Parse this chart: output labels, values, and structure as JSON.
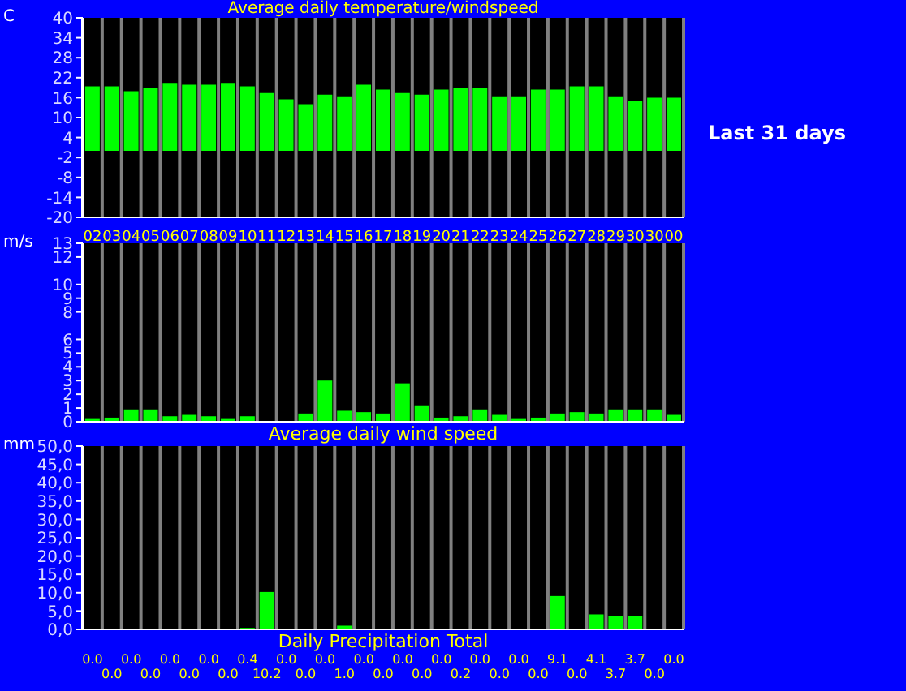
{
  "chart_data": [
    {
      "type": "bar",
      "title": "Average daily temperature/windspeed",
      "ylabel": "C",
      "annotations": [
        "Last 31 days"
      ],
      "categories": [
        "02",
        "03",
        "04",
        "05",
        "06",
        "07",
        "08",
        "09",
        "10",
        "11",
        "12",
        "13",
        "14",
        "15",
        "16",
        "17",
        "18",
        "19",
        "20",
        "21",
        "22",
        "23",
        "24",
        "25",
        "26",
        "27",
        "28",
        "29",
        "30",
        "30",
        "00"
      ],
      "values": [
        19.4,
        19.4,
        17.9,
        18.9,
        20.4,
        19.9,
        19.9,
        20.4,
        19.4,
        17.4,
        15.5,
        14.0,
        16.9,
        16.4,
        19.9,
        18.4,
        17.4,
        16.9,
        18.4,
        18.9,
        18.9,
        16.4,
        16.4,
        18.4,
        18.4,
        19.4,
        19.4,
        16.4,
        15.0,
        16.0,
        16.0
      ],
      "color": "#00ff00",
      "ylim": [
        -20,
        40
      ],
      "yticks": [
        -20,
        -14,
        -8,
        -2,
        4,
        10,
        16,
        22,
        28,
        34,
        40
      ],
      "grid": "x"
    },
    {
      "type": "bar",
      "xlabel": "Average daily wind speed",
      "ylabel": "m/s",
      "categories": [
        "02",
        "03",
        "04",
        "05",
        "06",
        "07",
        "08",
        "09",
        "10",
        "11",
        "12",
        "13",
        "14",
        "15",
        "16",
        "17",
        "18",
        "19",
        "20",
        "21",
        "22",
        "23",
        "24",
        "25",
        "26",
        "27",
        "28",
        "29",
        "30",
        "30",
        "00"
      ],
      "values": [
        0.2,
        0.3,
        0.9,
        0.9,
        0.4,
        0.5,
        0.4,
        0.2,
        0.4,
        0,
        0,
        0.6,
        3.0,
        0.8,
        0.7,
        0.6,
        2.8,
        1.2,
        0.3,
        0.4,
        0.9,
        0.5,
        0.2,
        0.3,
        0.6,
        0.7,
        0.6,
        0.9,
        0.9,
        0.9,
        0.5
      ],
      "color": "#00ff00",
      "ylim": [
        0,
        13
      ],
      "yticks": [
        0,
        1,
        2,
        3,
        4,
        5,
        6,
        8,
        9,
        10,
        12,
        13
      ],
      "grid": "x",
      "tick_labels": "y"
    },
    {
      "type": "bar",
      "xlabel": "Daily Precipitation Total",
      "ylabel": "mm",
      "categories": [
        "02",
        "03",
        "04",
        "05",
        "06",
        "07",
        "08",
        "09",
        "10",
        "11",
        "12",
        "13",
        "14",
        "15",
        "16",
        "17",
        "18",
        "19",
        "20",
        "21",
        "22",
        "23",
        "24",
        "25",
        "26",
        "27",
        "28",
        "29",
        "30",
        "30",
        "00"
      ],
      "values": [
        0,
        0,
        0,
        0,
        0,
        0,
        0,
        0,
        0.4,
        10.2,
        0,
        0,
        0,
        1.0,
        0,
        0,
        0,
        0,
        0,
        0.2,
        0,
        0,
        0,
        0,
        9.1,
        0,
        4.1,
        3.7,
        3.7,
        0,
        0
      ],
      "value_labels": [
        "0.0",
        "0.0",
        "0.0",
        "0.0",
        "0.0",
        "0.0",
        "0.0",
        "0.0",
        "0.4",
        "10.2",
        "0.0",
        "0.0",
        "0.0",
        "1.0",
        "0.0",
        "0.0",
        "0.0",
        "0.0",
        "0.0",
        "0.2",
        "0.0",
        "0.0",
        "0.0",
        "0.0",
        "9.1",
        "0.0",
        "4.1",
        "3.7",
        "3.7",
        "0.0",
        "0.0"
      ],
      "color": "#00ff00",
      "ylim": [
        0,
        50
      ],
      "yticks": [
        {
          "value": 0,
          "label": "0,0"
        },
        {
          "value": 5,
          "label": "5,0"
        },
        {
          "value": 10,
          "label": "10,0"
        },
        {
          "value": 15,
          "label": "15,0"
        },
        {
          "value": 20,
          "label": "20,0"
        },
        {
          "value": 25,
          "label": "25,0"
        },
        {
          "value": 30,
          "label": "30,0"
        },
        {
          "value": 35,
          "label": "35,0"
        },
        {
          "value": 40,
          "label": "40,0"
        },
        {
          "value": 45,
          "label": "45,0"
        },
        {
          "value": 50,
          "label": "50,0"
        }
      ],
      "grid": "x",
      "tick_labels": "y"
    }
  ]
}
